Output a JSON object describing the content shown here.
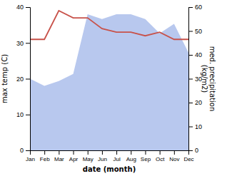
{
  "chart_data": {
    "type": "line",
    "categories": [
      "Jan",
      "Feb",
      "Mar",
      "Apr",
      "May",
      "Jun",
      "Jul",
      "Aug",
      "Sep",
      "Oct",
      "Nov",
      "Dec"
    ],
    "series": [
      {
        "type": "area",
        "axis": "y2",
        "color": "#b8c8ee",
        "values": [
          30,
          27,
          29,
          32,
          57,
          55,
          57,
          57,
          55,
          49,
          53,
          41
        ]
      },
      {
        "type": "line",
        "color": "#c8524a",
        "values": [
          31,
          31,
          39,
          37,
          37,
          34,
          33,
          33,
          32,
          33,
          31,
          31
        ]
      }
    ],
    "ylim": [
      0,
      40
    ],
    "yticks": [
      0,
      10,
      20,
      30,
      40
    ],
    "y2lim": [
      0,
      60
    ],
    "y2ticks": [
      0,
      10,
      20,
      30,
      40,
      50,
      60
    ],
    "xlabel": "date (month)",
    "ylabel": "max temp (C)",
    "y2label": "med. precipitation\n(kg/m2)",
    "grid": false
  }
}
